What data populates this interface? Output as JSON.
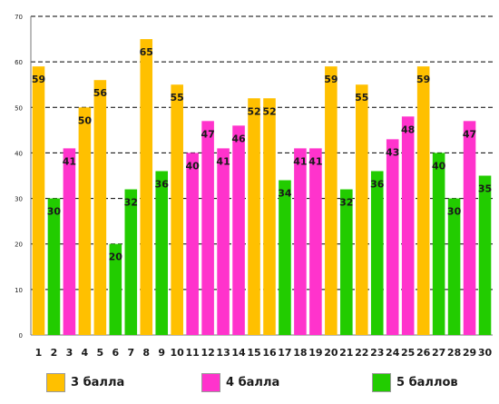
{
  "chart_data": {
    "type": "bar",
    "categories": [
      "1",
      "2",
      "3",
      "4",
      "5",
      "6",
      "7",
      "8",
      "9",
      "10",
      "11",
      "12",
      "13",
      "14",
      "15",
      "16",
      "17",
      "18",
      "19",
      "20",
      "21",
      "22",
      "23",
      "24",
      "25",
      "26",
      "27",
      "28",
      "29",
      "30"
    ],
    "values": [
      59,
      30,
      41,
      50,
      56,
      20,
      32,
      65,
      36,
      55,
      40,
      47,
      41,
      46,
      52,
      52,
      34,
      41,
      41,
      59,
      32,
      55,
      36,
      43,
      48,
      59,
      40,
      30,
      47,
      35
    ],
    "groups": [
      "3",
      "5",
      "4",
      "3",
      "3",
      "5",
      "5",
      "3",
      "5",
      "3",
      "4",
      "4",
      "4",
      "4",
      "3",
      "3",
      "5",
      "4",
      "4",
      "3",
      "5",
      "3",
      "5",
      "4",
      "4",
      "3",
      "5",
      "5",
      "4",
      "5"
    ],
    "ylim": [
      0,
      70
    ],
    "yticks": [
      0,
      10,
      20,
      30,
      40,
      50,
      60,
      70
    ],
    "grid": true,
    "legend_position": "bottom",
    "colors": {
      "3": "#FFC000",
      "4": "#FF33CC",
      "5": "#22CC00"
    },
    "legend": [
      {
        "key": "3",
        "label": "3 балла"
      },
      {
        "key": "4",
        "label": "4 балла"
      },
      {
        "key": "5",
        "label": "5 баллов"
      }
    ]
  }
}
